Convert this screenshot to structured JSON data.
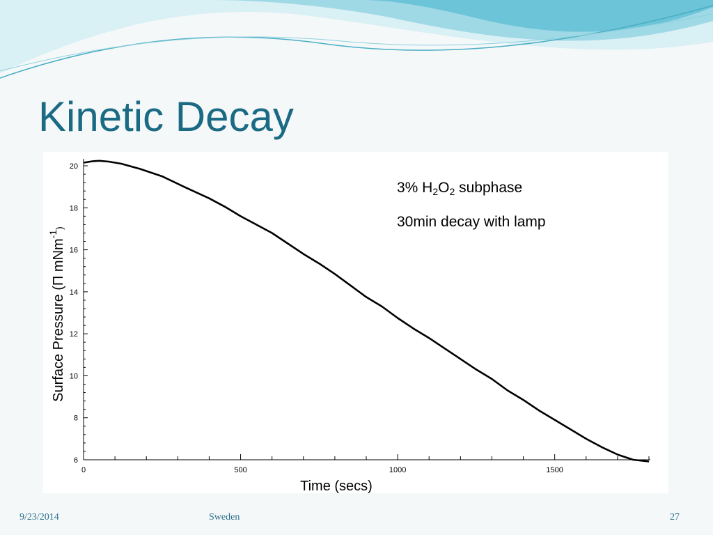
{
  "slide": {
    "title": "Kinetic Decay",
    "footer": {
      "date": "9/23/2014",
      "center": "Sweden",
      "page": "27"
    }
  },
  "annotation": {
    "line1_prefix": "3% H",
    "line1_sub1": "2",
    "line1_mid": "O",
    "line1_sub2": "2",
    "line1_suffix": " subphase",
    "line2": "30min decay with lamp"
  },
  "colors": {
    "title": "#1a6a84",
    "footer": "#2a6f8c",
    "series": "#000000",
    "wave_light": "#bfe6ee",
    "wave_dark": "#7ccfdf"
  },
  "chart_data": {
    "type": "line",
    "xlabel": "Time (secs)",
    "ylabel": "Surface Pressure (Π mNm",
    "ylabel_sup": "-1",
    "ylabel_close": ")",
    "xlim": [
      0,
      1800
    ],
    "ylim": [
      6,
      20.2
    ],
    "x_ticks": [
      0,
      500,
      1000,
      1500
    ],
    "y_ticks": [
      6,
      8,
      10,
      12,
      14,
      16,
      18,
      20
    ],
    "grid": false,
    "series": [
      {
        "x": [
          0,
          30,
          50,
          80,
          120,
          180,
          250,
          320,
          400,
          450,
          500,
          550,
          600,
          650,
          700,
          750,
          800,
          850,
          900,
          950,
          1000,
          1050,
          1100,
          1150,
          1200,
          1250,
          1300,
          1350,
          1400,
          1450,
          1500,
          1550,
          1600,
          1650,
          1700,
          1750,
          1800
        ],
        "y": [
          20.15,
          20.22,
          20.24,
          20.2,
          20.1,
          19.85,
          19.5,
          19.0,
          18.45,
          18.05,
          17.6,
          17.2,
          16.8,
          16.3,
          15.8,
          15.35,
          14.85,
          14.3,
          13.75,
          13.3,
          12.75,
          12.25,
          11.8,
          11.3,
          10.8,
          10.3,
          9.85,
          9.3,
          8.85,
          8.35,
          7.9,
          7.45,
          7.0,
          6.6,
          6.25,
          6.0,
          5.92
        ]
      }
    ]
  }
}
